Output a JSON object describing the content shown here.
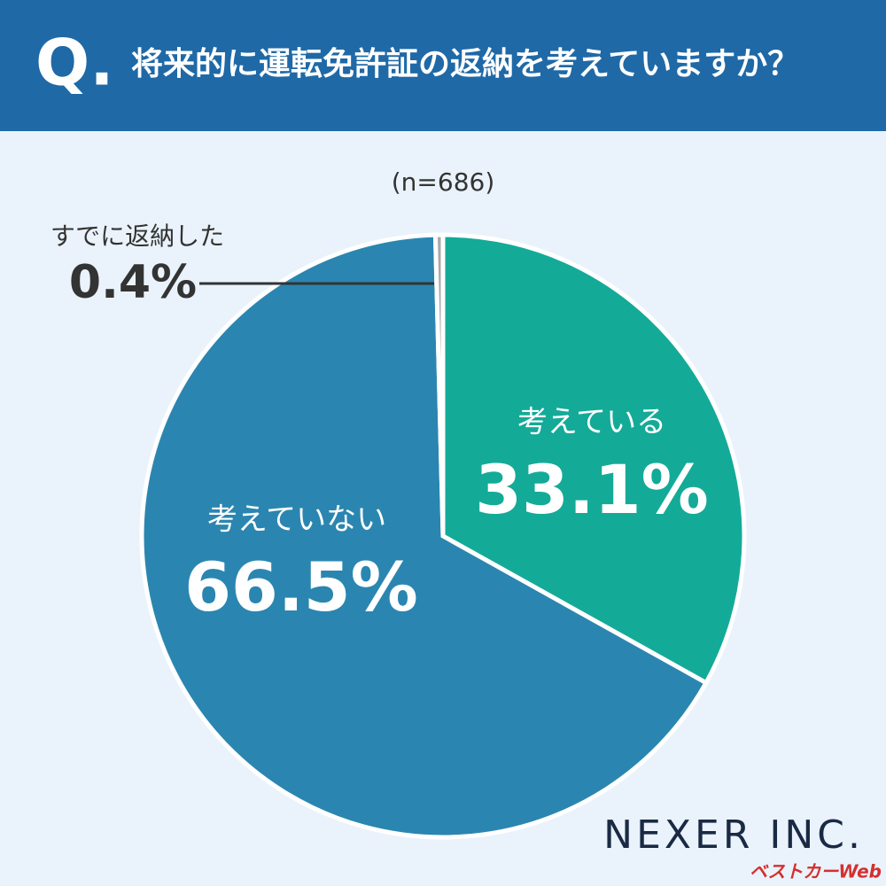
{
  "chart_data": {
    "type": "pie",
    "question_mark": "Q.",
    "title": "将来的に運転免許証の返納を考えていますか？",
    "subtitle": "(n=686)",
    "categories": [
      "考えている",
      "考えていない",
      "すでに返納した"
    ],
    "values": [
      33.1,
      66.5,
      0.4
    ],
    "value_labels": [
      "33.1%",
      "66.5%",
      "0.4%"
    ],
    "colors": [
      "#14aa98",
      "#2a86b0",
      "#a9a9a9"
    ],
    "brand": "NEXER INC.",
    "watermark": "ベストカーWeb"
  }
}
